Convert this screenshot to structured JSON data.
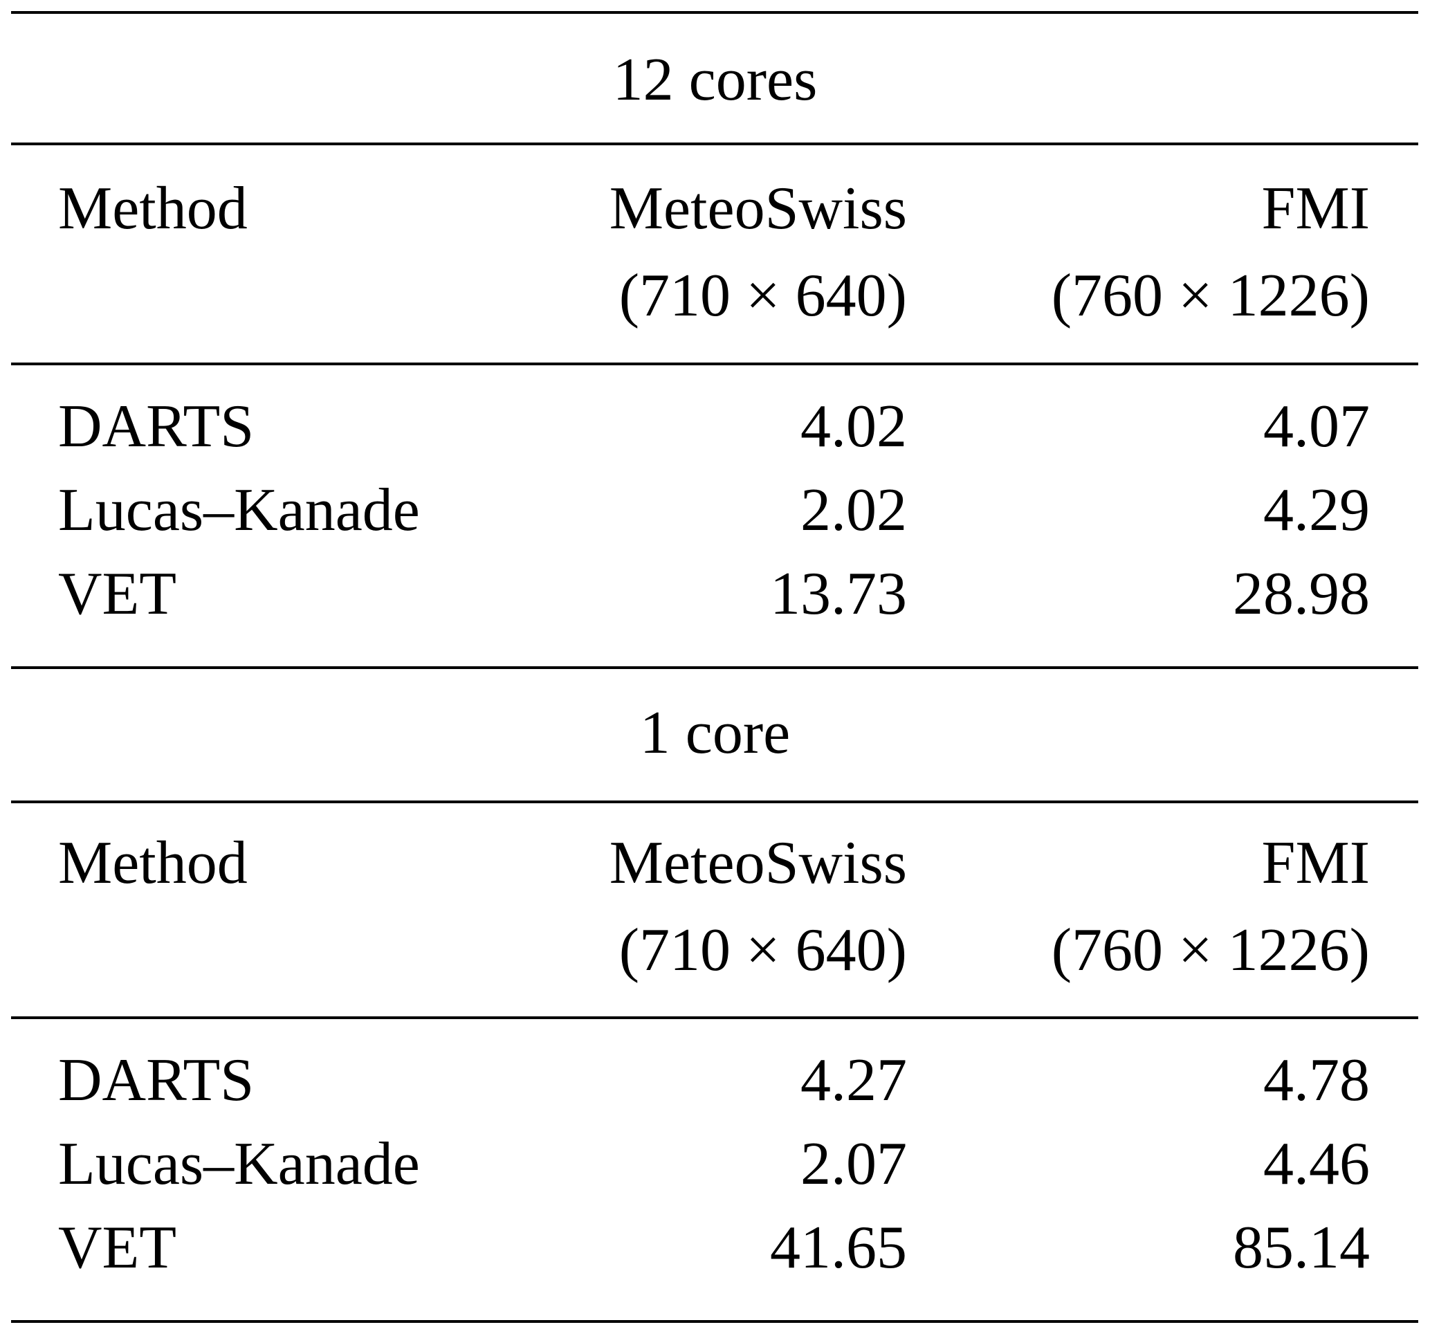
{
  "table": {
    "sections": [
      {
        "title": "12 cores",
        "header": {
          "method": "Method",
          "col1_name": "MeteoSwiss",
          "col1_size": "(710 × 640)",
          "col2_name": "FMI",
          "col2_size": "(760 × 1226)"
        },
        "rows": [
          {
            "method": "DARTS",
            "meteoswiss": "4.02",
            "fmi": "4.07"
          },
          {
            "method": "Lucas–Kanade",
            "meteoswiss": "2.02",
            "fmi": "4.29"
          },
          {
            "method": "VET",
            "meteoswiss": "13.73",
            "fmi": "28.98"
          }
        ]
      },
      {
        "title": "1 core",
        "header": {
          "method": "Method",
          "col1_name": "MeteoSwiss",
          "col1_size": "(710 × 640)",
          "col2_name": "FMI",
          "col2_size": "(760 × 1226)"
        },
        "rows": [
          {
            "method": "DARTS",
            "meteoswiss": "4.27",
            "fmi": "4.78"
          },
          {
            "method": "Lucas–Kanade",
            "meteoswiss": "2.07",
            "fmi": "4.46"
          },
          {
            "method": "VET",
            "meteoswiss": "41.65",
            "fmi": "85.14"
          }
        ]
      }
    ]
  }
}
